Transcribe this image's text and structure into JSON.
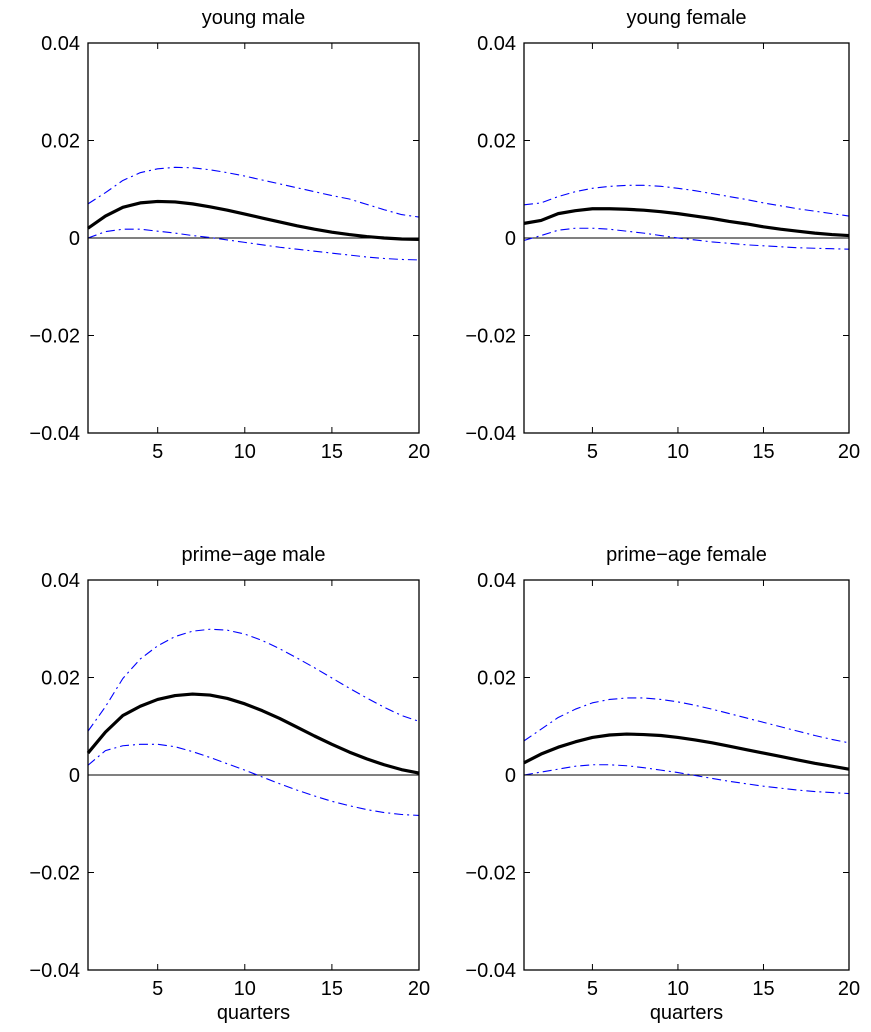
{
  "chart_data": [
    {
      "type": "line",
      "title": "young male",
      "xlabel": "",
      "ylabel": "",
      "xlim": [
        1,
        20
      ],
      "ylim": [
        -0.04,
        0.04
      ],
      "xticks": [
        5,
        10,
        15,
        20
      ],
      "xtick_labels": [
        "5",
        "10",
        "15",
        "20"
      ],
      "yticks": [
        -0.04,
        -0.02,
        0,
        0.02,
        0.04
      ],
      "ytick_labels": [
        "−0.04",
        "−0.02",
        "0",
        "0.02",
        "0.04"
      ],
      "zero_line": true,
      "grid": false,
      "x": [
        1,
        2,
        3,
        4,
        5,
        6,
        7,
        8,
        9,
        10,
        11,
        12,
        13,
        14,
        15,
        16,
        17,
        18,
        19,
        20
      ],
      "series": [
        {
          "role": "estimate",
          "color": "#000000",
          "style": "solid",
          "values": [
            0.002,
            0.0045,
            0.0063,
            0.0072,
            0.0075,
            0.0074,
            0.007,
            0.0064,
            0.0057,
            0.0049,
            0.0041,
            0.0033,
            0.0025,
            0.0018,
            0.0012,
            0.0007,
            0.0003,
            0.0,
            -0.0002,
            -0.0003
          ]
        },
        {
          "role": "upper",
          "color": "#0000ff",
          "style": "dashdot",
          "values": [
            0.007,
            0.0093,
            0.0118,
            0.0134,
            0.0142,
            0.0145,
            0.0144,
            0.014,
            0.0134,
            0.0127,
            0.0119,
            0.0111,
            0.0103,
            0.0095,
            0.0087,
            0.008,
            0.0069,
            0.0058,
            0.0048,
            0.0043
          ]
        },
        {
          "role": "lower",
          "color": "#0000ff",
          "style": "dashdot",
          "values": [
            0.0,
            0.0013,
            0.0018,
            0.0018,
            0.0014,
            0.001,
            0.0005,
            0.0001,
            -0.0004,
            -0.0009,
            -0.0014,
            -0.0019,
            -0.0023,
            -0.0027,
            -0.0031,
            -0.0035,
            -0.0039,
            -0.0042,
            -0.0044,
            -0.0045
          ]
        }
      ]
    },
    {
      "type": "line",
      "title": "young female",
      "xlabel": "",
      "ylabel": "",
      "xlim": [
        1,
        20
      ],
      "ylim": [
        -0.04,
        0.04
      ],
      "xticks": [
        5,
        10,
        15,
        20
      ],
      "xtick_labels": [
        "5",
        "10",
        "15",
        "20"
      ],
      "yticks": [
        -0.04,
        -0.02,
        0,
        0.02,
        0.04
      ],
      "ytick_labels": [
        "−0.04",
        "−0.02",
        "0",
        "0.02",
        "0.04"
      ],
      "zero_line": true,
      "grid": false,
      "x": [
        1,
        2,
        3,
        4,
        5,
        6,
        7,
        8,
        9,
        10,
        11,
        12,
        13,
        14,
        15,
        16,
        17,
        18,
        19,
        20
      ],
      "series": [
        {
          "role": "estimate",
          "color": "#000000",
          "style": "solid",
          "values": [
            0.003,
            0.0036,
            0.005,
            0.0056,
            0.006,
            0.006,
            0.0059,
            0.0057,
            0.0054,
            0.005,
            0.0045,
            0.004,
            0.0034,
            0.0029,
            0.0023,
            0.0018,
            0.0014,
            0.001,
            0.0007,
            0.0005
          ]
        },
        {
          "role": "upper",
          "color": "#0000ff",
          "style": "dashdot",
          "values": [
            0.0068,
            0.0072,
            0.0085,
            0.0095,
            0.0102,
            0.0106,
            0.0108,
            0.0108,
            0.0106,
            0.0102,
            0.0097,
            0.0091,
            0.0085,
            0.0079,
            0.0072,
            0.0066,
            0.006,
            0.0055,
            0.005,
            0.0045
          ]
        },
        {
          "role": "lower",
          "color": "#0000ff",
          "style": "dashdot",
          "values": [
            -0.0005,
            0.0005,
            0.0016,
            0.002,
            0.002,
            0.0018,
            0.0014,
            0.001,
            0.0005,
            0.0,
            -0.0004,
            -0.0008,
            -0.0011,
            -0.0014,
            -0.0016,
            -0.0018,
            -0.002,
            -0.0021,
            -0.0022,
            -0.0023
          ]
        }
      ]
    },
    {
      "type": "line",
      "title": "prime−age male",
      "xlabel": "quarters",
      "ylabel": "",
      "xlim": [
        1,
        20
      ],
      "ylim": [
        -0.04,
        0.04
      ],
      "xticks": [
        5,
        10,
        15,
        20
      ],
      "xtick_labels": [
        "5",
        "10",
        "15",
        "20"
      ],
      "yticks": [
        -0.04,
        -0.02,
        0,
        0.02,
        0.04
      ],
      "ytick_labels": [
        "−0.04",
        "−0.02",
        "0",
        "0.02",
        "0.04"
      ],
      "zero_line": true,
      "grid": false,
      "x": [
        1,
        2,
        3,
        4,
        5,
        6,
        7,
        8,
        9,
        10,
        11,
        12,
        13,
        14,
        15,
        16,
        17,
        18,
        19,
        20
      ],
      "series": [
        {
          "role": "estimate",
          "color": "#000000",
          "style": "solid",
          "values": [
            0.0045,
            0.0088,
            0.0122,
            0.0141,
            0.0155,
            0.0163,
            0.0166,
            0.0164,
            0.0157,
            0.0146,
            0.0132,
            0.0116,
            0.0098,
            0.008,
            0.0063,
            0.0047,
            0.0033,
            0.0021,
            0.0011,
            0.0004
          ]
        },
        {
          "role": "upper",
          "color": "#0000ff",
          "style": "dashdot",
          "values": [
            0.009,
            0.014,
            0.0198,
            0.0238,
            0.0265,
            0.0284,
            0.0295,
            0.0299,
            0.0297,
            0.0289,
            0.0276,
            0.0259,
            0.024,
            0.022,
            0.0199,
            0.0178,
            0.0158,
            0.0139,
            0.0122,
            0.011
          ]
        },
        {
          "role": "lower",
          "color": "#0000ff",
          "style": "dashdot",
          "values": [
            0.002,
            0.005,
            0.006,
            0.0063,
            0.0063,
            0.0058,
            0.0048,
            0.0036,
            0.0023,
            0.001,
            -0.0004,
            -0.0018,
            -0.0031,
            -0.0043,
            -0.0054,
            -0.0063,
            -0.0071,
            -0.0077,
            -0.0081,
            -0.0083
          ]
        }
      ]
    },
    {
      "type": "line",
      "title": "prime−age female",
      "xlabel": "quarters",
      "ylabel": "",
      "xlim": [
        1,
        20
      ],
      "ylim": [
        -0.04,
        0.04
      ],
      "xticks": [
        5,
        10,
        15,
        20
      ],
      "xtick_labels": [
        "5",
        "10",
        "15",
        "20"
      ],
      "yticks": [
        -0.04,
        -0.02,
        0,
        0.02,
        0.04
      ],
      "ytick_labels": [
        "−0.04",
        "−0.02",
        "0",
        "0.02",
        "0.04"
      ],
      "zero_line": true,
      "grid": false,
      "x": [
        1,
        2,
        3,
        4,
        5,
        6,
        7,
        8,
        9,
        10,
        11,
        12,
        13,
        14,
        15,
        16,
        17,
        18,
        19,
        20
      ],
      "series": [
        {
          "role": "estimate",
          "color": "#000000",
          "style": "solid",
          "values": [
            0.0025,
            0.0043,
            0.0057,
            0.0068,
            0.0077,
            0.0082,
            0.0084,
            0.0083,
            0.0081,
            0.0077,
            0.0072,
            0.0066,
            0.0059,
            0.0052,
            0.0045,
            0.0038,
            0.0031,
            0.0024,
            0.0018,
            0.0012
          ]
        },
        {
          "role": "upper",
          "color": "#0000ff",
          "style": "dashdot",
          "values": [
            0.007,
            0.0094,
            0.0118,
            0.0135,
            0.0148,
            0.0155,
            0.0158,
            0.0158,
            0.0155,
            0.015,
            0.0143,
            0.0135,
            0.0126,
            0.0117,
            0.0108,
            0.0099,
            0.009,
            0.0081,
            0.0073,
            0.0066
          ]
        },
        {
          "role": "lower",
          "color": "#0000ff",
          "style": "dashdot",
          "values": [
            0.0,
            0.0006,
            0.0012,
            0.0018,
            0.0021,
            0.0021,
            0.0019,
            0.0015,
            0.001,
            0.0005,
            -0.0001,
            -0.0007,
            -0.0013,
            -0.0018,
            -0.0023,
            -0.0027,
            -0.0031,
            -0.0034,
            -0.0036,
            -0.0038
          ]
        }
      ]
    }
  ]
}
